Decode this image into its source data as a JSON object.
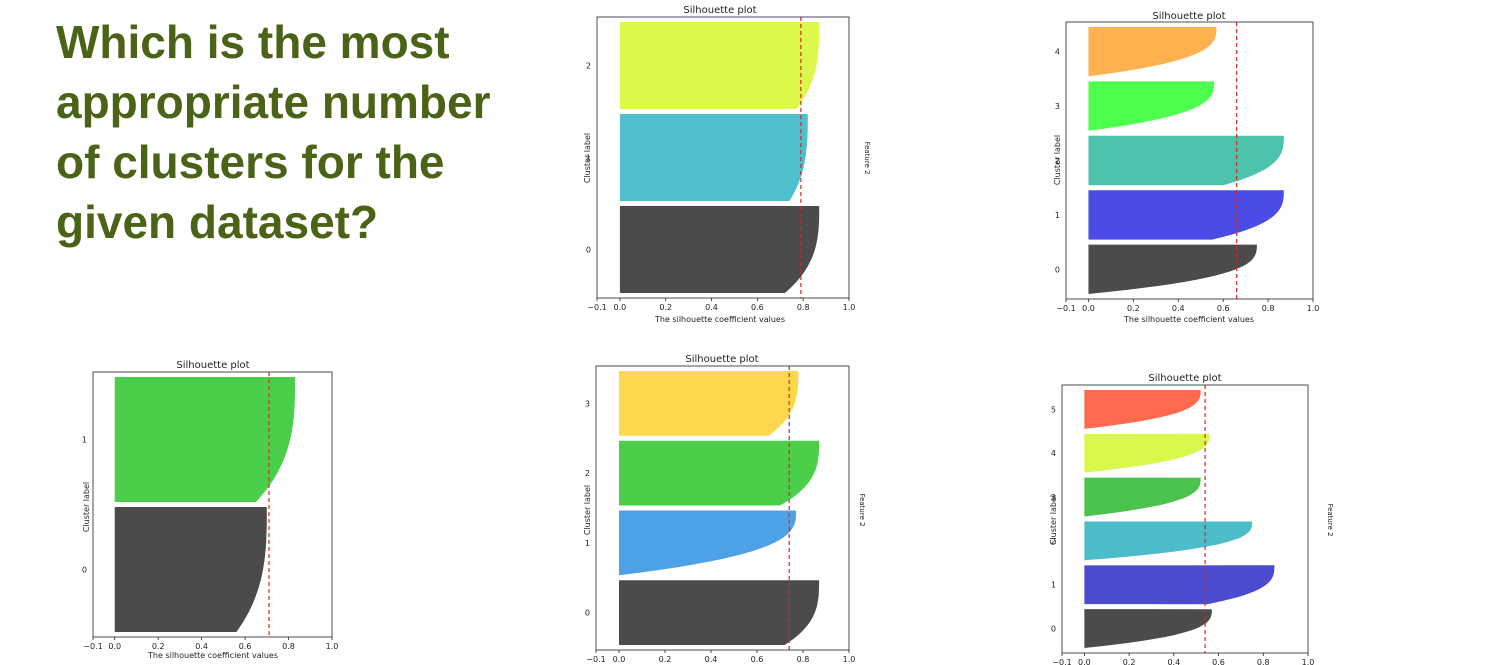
{
  "question": "Which is the most appropriate number of clusters for the given dataset?",
  "feature_label": "Feature 2",
  "chart_data": [
    {
      "type": "area",
      "title": "Silhouette plot",
      "xlabel": "The silhouette coefficient values",
      "ylabel": "Cluster label",
      "xlim": [
        -0.1,
        1.0
      ],
      "xticks": [
        "−0.1",
        "0.0",
        "0.2",
        "0.4",
        "0.6",
        "0.8",
        "1.0"
      ],
      "average_silhouette": 0.79,
      "clusters": [
        {
          "label": "0",
          "max": 0.87,
          "min": 0.72,
          "color": "#4b4b4b"
        },
        {
          "label": "1",
          "max": 0.82,
          "min": 0.74,
          "color": "#4fbfcd"
        },
        {
          "label": "2",
          "max": 0.87,
          "min": 0.77,
          "color": "#dbf84b"
        }
      ]
    },
    {
      "type": "area",
      "title": "Silhouette plot",
      "xlabel": "The silhouette coefficient values",
      "ylabel": "Cluster label",
      "xlim": [
        -0.1,
        1.0
      ],
      "xticks": [
        "−0.1",
        "0.0",
        "0.2",
        "0.4",
        "0.6",
        "0.8",
        "1.0"
      ],
      "average_silhouette": 0.66,
      "clusters": [
        {
          "label": "0",
          "max": 0.75,
          "min": 0.0,
          "color": "#4b4b4b"
        },
        {
          "label": "1",
          "max": 0.87,
          "min": 0.55,
          "color": "#4b4be6"
        },
        {
          "label": "2",
          "max": 0.87,
          "min": 0.6,
          "color": "#4cc3aa"
        },
        {
          "label": "3",
          "max": 0.56,
          "min": 0.0,
          "color": "#4cff4c"
        },
        {
          "label": "4",
          "max": 0.57,
          "min": 0.0,
          "color": "#ffb14e"
        }
      ]
    },
    {
      "type": "area",
      "title": "Silhouette plot",
      "xlabel": "The silhouette coefficient values",
      "ylabel": "Cluster label",
      "xlim": [
        -0.1,
        1.0
      ],
      "xticks": [
        "−0.1",
        "0.0",
        "0.2",
        "0.4",
        "0.6",
        "0.8",
        "1.0"
      ],
      "average_silhouette": 0.71,
      "clusters": [
        {
          "label": "0",
          "max": 0.7,
          "min": 0.56,
          "color": "#4b4b4b"
        },
        {
          "label": "1",
          "max": 0.83,
          "min": 0.65,
          "color": "#4bcf4b"
        }
      ]
    },
    {
      "type": "area",
      "title": "Silhouette plot",
      "xlabel": "",
      "ylabel": "Cluster label",
      "xlim": [
        -0.1,
        1.0
      ],
      "xticks": [
        "−0.1",
        "0.0",
        "0.2",
        "0.4",
        "0.6",
        "0.8",
        "1.0"
      ],
      "average_silhouette": 0.74,
      "clusters": [
        {
          "label": "0",
          "max": 0.87,
          "min": 0.72,
          "color": "#4b4b4b"
        },
        {
          "label": "1",
          "max": 0.77,
          "min": 0.0,
          "color": "#4da1e6"
        },
        {
          "label": "2",
          "max": 0.87,
          "min": 0.7,
          "color": "#4bcf4b"
        },
        {
          "label": "3",
          "max": 0.78,
          "min": 0.65,
          "color": "#fdd84d"
        }
      ]
    },
    {
      "type": "area",
      "title": "Silhouette plot",
      "xlabel": "",
      "ylabel": "Cluster label",
      "xlim": [
        -0.1,
        1.0
      ],
      "xticks": [
        "−0.1",
        "0.0",
        "0.2",
        "0.4",
        "0.6",
        "0.8",
        "1.0"
      ],
      "average_silhouette": 0.54,
      "clusters": [
        {
          "label": "0",
          "max": 0.57,
          "min": 0.0,
          "color": "#4b4b4b"
        },
        {
          "label": "1",
          "max": 0.85,
          "min": 0.55,
          "color": "#4b4bd0"
        },
        {
          "label": "2",
          "max": 0.75,
          "min": 0.0,
          "color": "#4dbcc9"
        },
        {
          "label": "3",
          "max": 0.52,
          "min": 0.0,
          "color": "#4bc24b"
        },
        {
          "label": "4",
          "max": 0.56,
          "min": 0.0,
          "color": "#d8f84b"
        },
        {
          "label": "5",
          "max": 0.52,
          "min": 0.0,
          "color": "#ff6a4e"
        }
      ]
    }
  ]
}
